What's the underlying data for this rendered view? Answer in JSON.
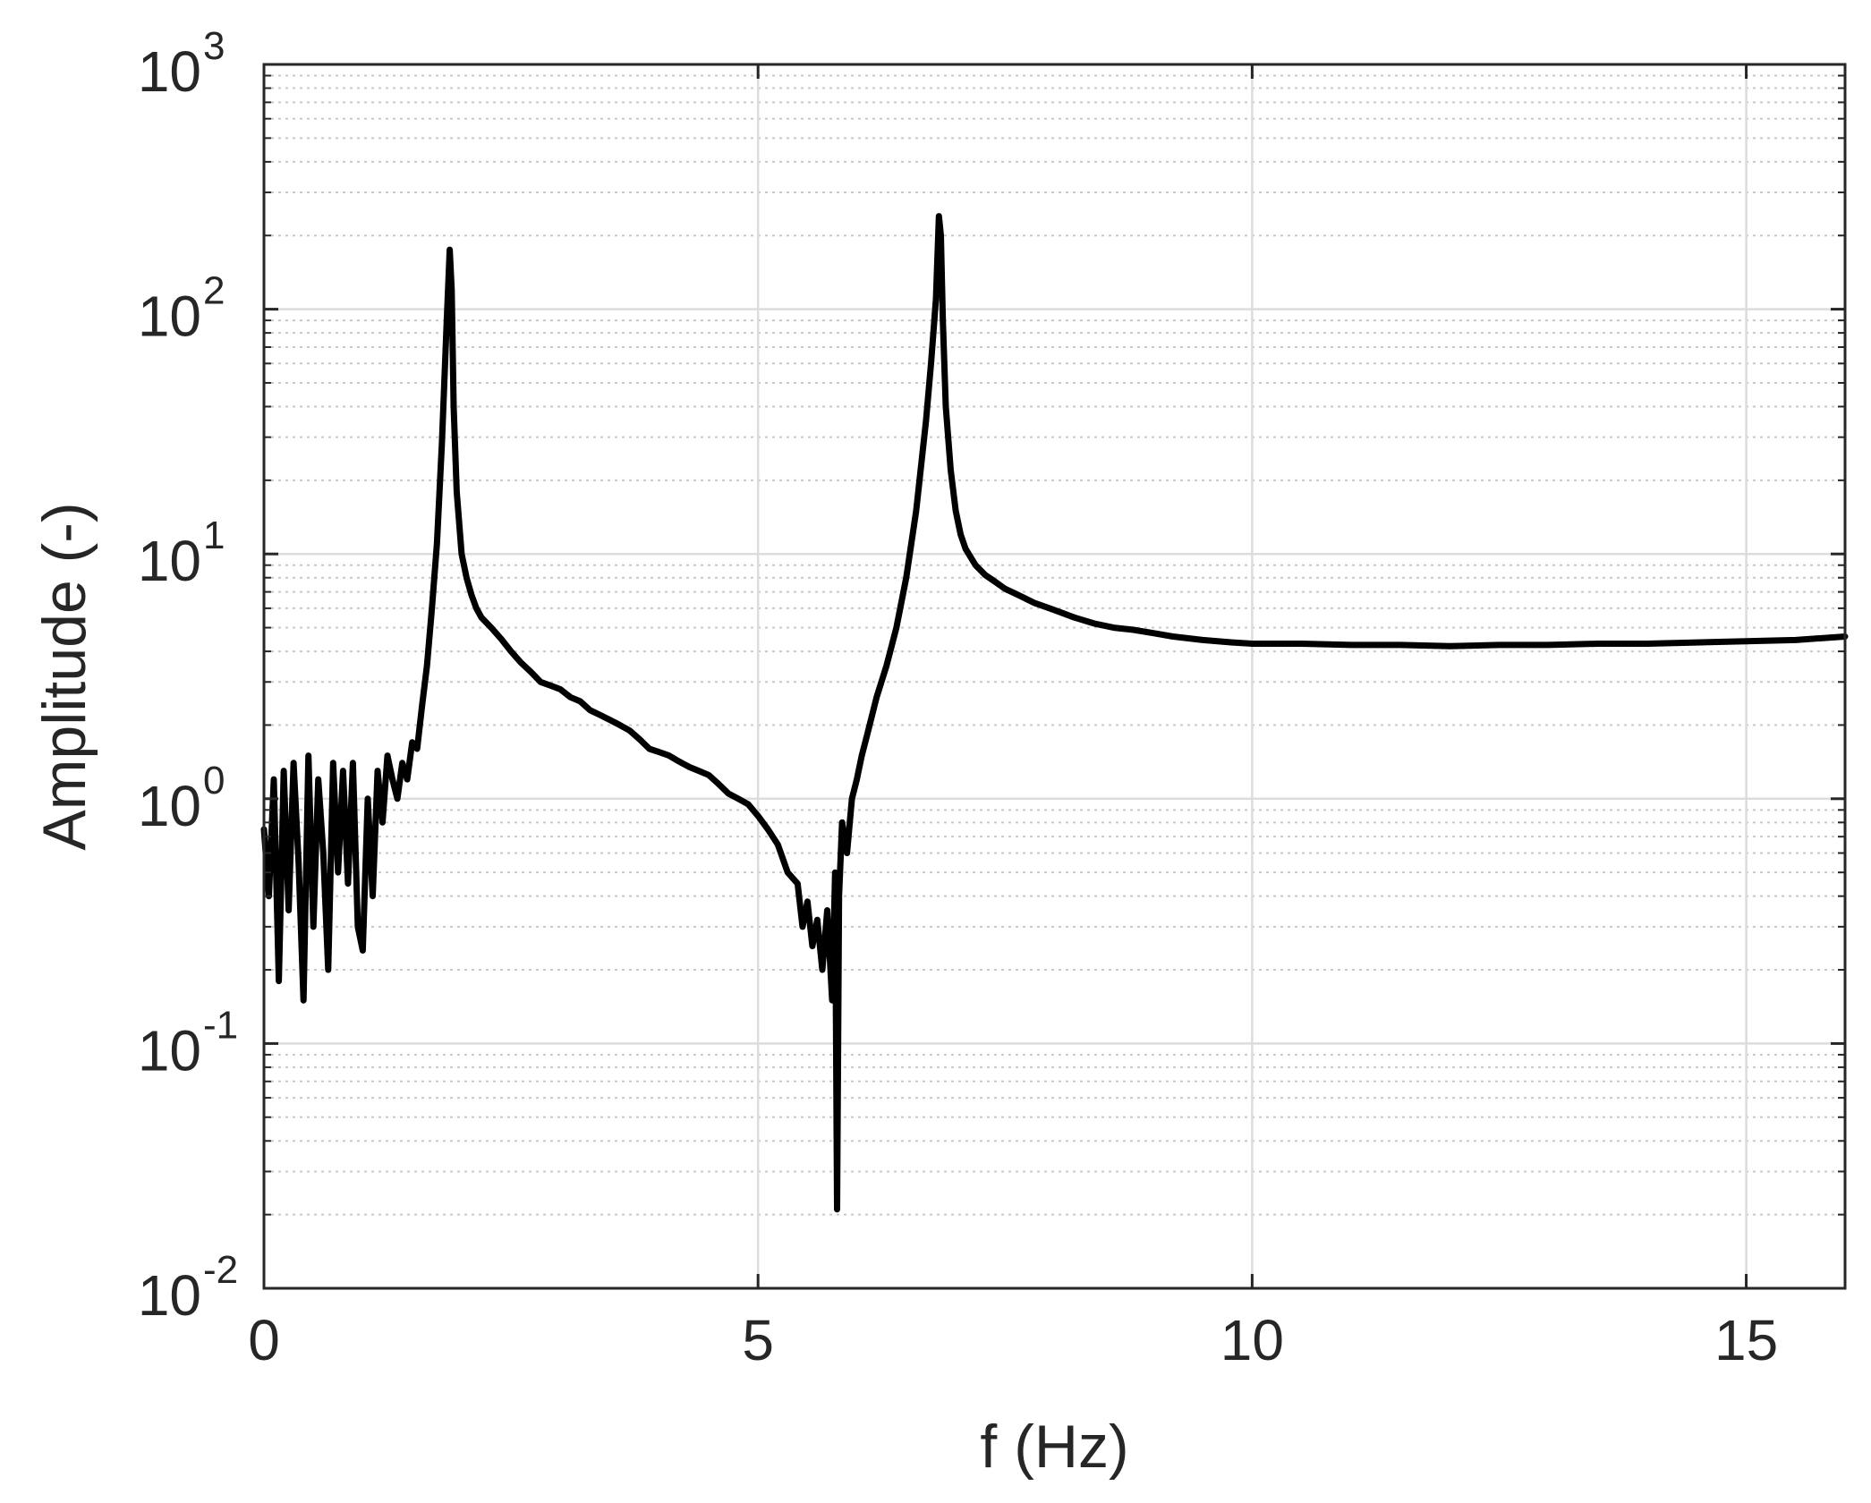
{
  "chart_data": {
    "type": "line",
    "title": "",
    "xlabel": "f (Hz)",
    "ylabel": "Amplitude (-)",
    "xlim": [
      0,
      16
    ],
    "ylim": [
      0.01,
      1000
    ],
    "yscale": "log",
    "grid": true,
    "minor_grid": true,
    "legend": "none",
    "x_ticks": [
      0,
      5,
      10,
      15
    ],
    "x_tick_labels": [
      "0",
      "5",
      "10",
      "15"
    ],
    "y_ticks": [
      {
        "value": 0.01,
        "base": "10",
        "exp": "-2"
      },
      {
        "value": 0.1,
        "base": "10",
        "exp": "-1"
      },
      {
        "value": 1,
        "base": "10",
        "exp": "0"
      },
      {
        "value": 10,
        "base": "10",
        "exp": "1"
      },
      {
        "value": 100,
        "base": "10",
        "exp": "2"
      },
      {
        "value": 1000,
        "base": "10",
        "exp": "3"
      }
    ],
    "line_color": "#000000",
    "series": [
      {
        "x": [
          0.0,
          0.05,
          0.1,
          0.15,
          0.2,
          0.25,
          0.3,
          0.35,
          0.4,
          0.45,
          0.5,
          0.55,
          0.6,
          0.65,
          0.7,
          0.75,
          0.8,
          0.85,
          0.9,
          0.95,
          1.0,
          1.05,
          1.1,
          1.15,
          1.2,
          1.25,
          1.3,
          1.35,
          1.4,
          1.45,
          1.5,
          1.55,
          1.6,
          1.65,
          1.7,
          1.75,
          1.8,
          1.85,
          1.88,
          1.9,
          1.92,
          1.95,
          2.0,
          2.05,
          2.1,
          2.15,
          2.2,
          2.3,
          2.4,
          2.5,
          2.6,
          2.7,
          2.8,
          2.9,
          3.0,
          3.1,
          3.2,
          3.3,
          3.4,
          3.5,
          3.6,
          3.7,
          3.8,
          3.9,
          4.0,
          4.1,
          4.2,
          4.3,
          4.4,
          4.5,
          4.6,
          4.7,
          4.8,
          4.9,
          5.0,
          5.1,
          5.2,
          5.3,
          5.4,
          5.45,
          5.5,
          5.55,
          5.6,
          5.65,
          5.7,
          5.75,
          5.78,
          5.8,
          5.82,
          5.85,
          5.9,
          5.95,
          6.0,
          6.05,
          6.1,
          6.2,
          6.3,
          6.4,
          6.5,
          6.6,
          6.7,
          6.75,
          6.8,
          6.83,
          6.85,
          6.87,
          6.9,
          6.95,
          7.0,
          7.05,
          7.1,
          7.2,
          7.3,
          7.4,
          7.5,
          7.6,
          7.8,
          8.0,
          8.2,
          8.4,
          8.6,
          8.8,
          9.0,
          9.2,
          9.5,
          9.8,
          10.0,
          10.5,
          11.0,
          11.5,
          12.0,
          12.5,
          13.0,
          13.5,
          14.0,
          14.5,
          15.0,
          15.5,
          16.0
        ],
        "y": [
          0.75,
          0.4,
          1.2,
          0.18,
          1.3,
          0.35,
          1.4,
          0.55,
          0.15,
          1.5,
          0.3,
          1.2,
          0.6,
          0.2,
          1.4,
          0.5,
          1.3,
          0.45,
          1.4,
          0.3,
          0.24,
          1.0,
          0.4,
          1.3,
          0.8,
          1.5,
          1.2,
          1.0,
          1.4,
          1.2,
          1.7,
          1.6,
          2.4,
          3.5,
          6.0,
          11.0,
          28.0,
          90.0,
          175.0,
          120.0,
          40.0,
          18.0,
          10.0,
          8.0,
          6.8,
          6.0,
          5.5,
          5.0,
          4.5,
          4.0,
          3.6,
          3.3,
          3.0,
          2.9,
          2.8,
          2.6,
          2.5,
          2.3,
          2.2,
          2.1,
          2.0,
          1.9,
          1.75,
          1.6,
          1.55,
          1.5,
          1.42,
          1.35,
          1.3,
          1.25,
          1.15,
          1.05,
          1.0,
          0.95,
          0.85,
          0.75,
          0.65,
          0.5,
          0.45,
          0.3,
          0.38,
          0.25,
          0.32,
          0.2,
          0.35,
          0.15,
          0.5,
          0.021,
          0.4,
          0.8,
          0.6,
          1.0,
          1.2,
          1.5,
          1.8,
          2.6,
          3.5,
          5.0,
          8.0,
          15.0,
          35.0,
          60.0,
          110.0,
          240.0,
          200.0,
          90.0,
          40.0,
          22.0,
          15.0,
          12.0,
          10.5,
          9.0,
          8.2,
          7.7,
          7.2,
          6.9,
          6.3,
          5.9,
          5.5,
          5.2,
          5.0,
          4.9,
          4.75,
          4.6,
          4.45,
          4.35,
          4.3,
          4.3,
          4.25,
          4.25,
          4.2,
          4.25,
          4.25,
          4.3,
          4.3,
          4.35,
          4.4,
          4.45,
          4.6
        ]
      }
    ]
  }
}
